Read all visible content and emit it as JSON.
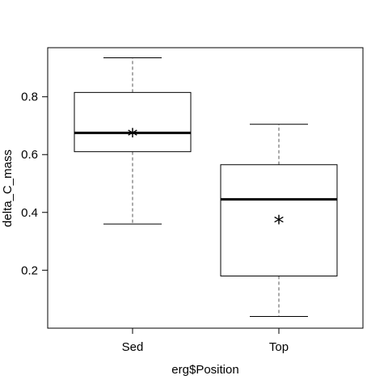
{
  "chart_data": {
    "type": "boxplot",
    "xlabel": "erg$Position",
    "ylabel": "delta_C_mass",
    "categories": [
      "Sed",
      "Top"
    ],
    "boxes": [
      {
        "category": "Sed",
        "whisker_low": 0.36,
        "q1": 0.61,
        "median": 0.675,
        "q3": 0.815,
        "whisker_high": 0.935,
        "mean": 0.68
      },
      {
        "category": "Top",
        "whisker_low": 0.04,
        "q1": 0.18,
        "median": 0.445,
        "q3": 0.565,
        "whisker_high": 0.705,
        "mean": 0.38
      }
    ],
    "ylim": [
      0.0,
      1.0
    ],
    "yticks": [
      0.2,
      0.4,
      0.6,
      0.8
    ],
    "ytick_labels": [
      "0.2",
      "0.4",
      "0.6",
      "0.8"
    ],
    "mean_marker": "*",
    "grid": false
  }
}
